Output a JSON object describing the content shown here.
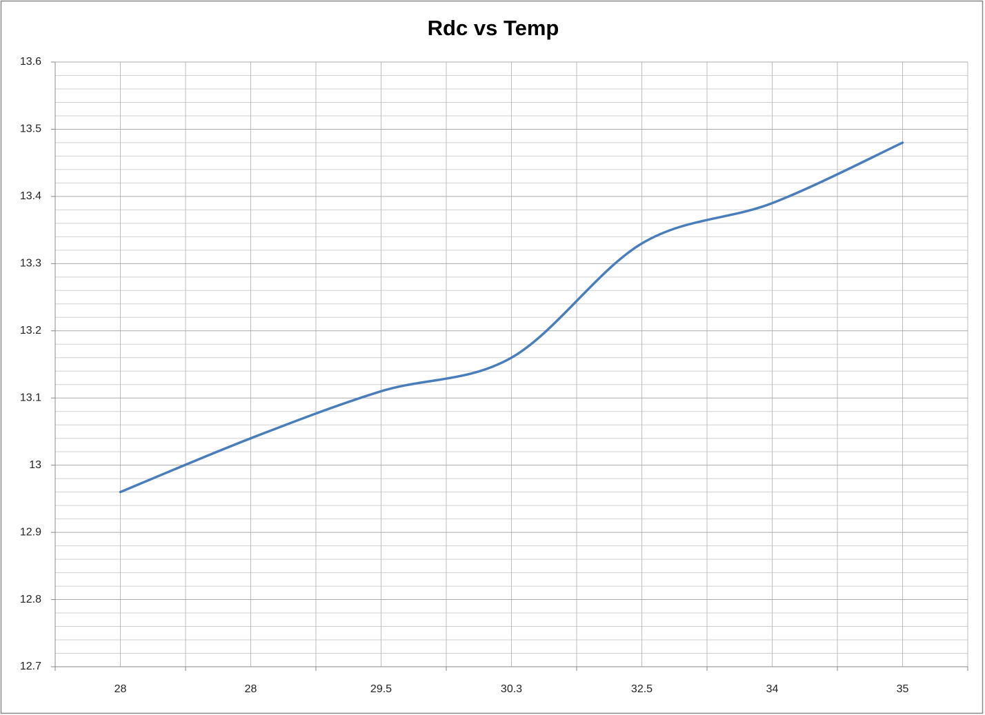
{
  "chart_data": {
    "type": "line",
    "title": "Rdc vs Temp",
    "categories": [
      "28",
      "28",
      "29.5",
      "30.3",
      "32.5",
      "34",
      "35"
    ],
    "values": [
      12.96,
      13.04,
      13.11,
      13.16,
      13.33,
      13.39,
      13.48
    ],
    "color": "#4a7ebb",
    "smooth": true,
    "ylim": [
      12.7,
      13.6
    ],
    "yticks": [
      12.7,
      12.8,
      12.9,
      13,
      13.1,
      13.2,
      13.3,
      13.4,
      13.5,
      13.6
    ],
    "grid": true
  }
}
